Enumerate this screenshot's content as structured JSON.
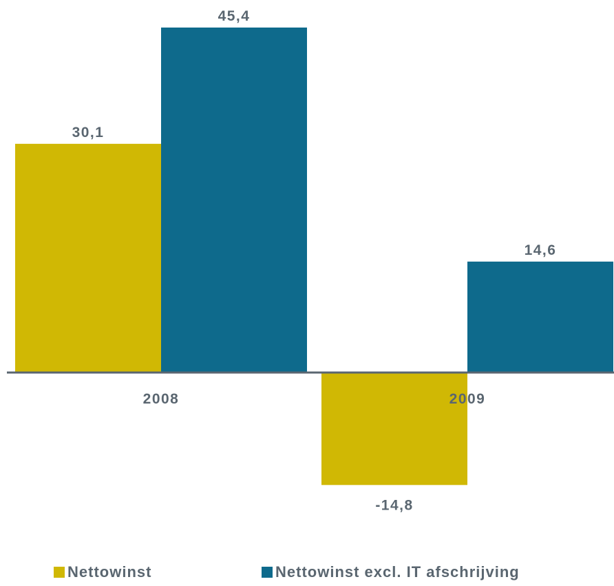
{
  "chart_data": {
    "type": "bar",
    "categories": [
      "2008",
      "2009"
    ],
    "series": [
      {
        "name": "Nettowinst",
        "values": [
          30.1,
          -14.8
        ],
        "color": "#d0b804"
      },
      {
        "name": "Nettowinst excl. IT afschrijving",
        "values": [
          45.4,
          14.6
        ],
        "color": "#0e6a8c"
      }
    ],
    "data_labels": [
      [
        "30,1",
        "-14,8"
      ],
      [
        "45,4",
        "14,6"
      ]
    ],
    "ylim": [
      -14.8,
      45.4
    ],
    "legend_position": "bottom",
    "grid": false,
    "axis_color": "#5a6670",
    "label_color": "#5a6670"
  },
  "legend": {
    "items": [
      {
        "label": "Nettowinst",
        "color": "#d0b804"
      },
      {
        "label": "Nettowinst excl. IT afschrijving",
        "color": "#0e6a8c"
      }
    ]
  }
}
